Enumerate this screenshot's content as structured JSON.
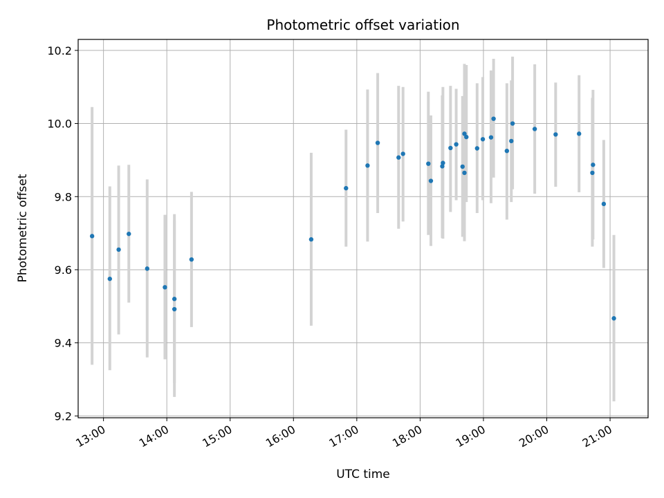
{
  "chart_data": {
    "type": "scatter",
    "title": "Photometric offset variation",
    "xlabel": "UTC time",
    "ylabel": "Photometric offset",
    "x_unit": "hour",
    "xlim": [
      12.6,
      21.6
    ],
    "ylim": [
      9.195,
      10.23
    ],
    "xticks": [
      {
        "value": 13,
        "label": "13:00"
      },
      {
        "value": 14,
        "label": "14:00"
      },
      {
        "value": 15,
        "label": "15:00"
      },
      {
        "value": 16,
        "label": "16:00"
      },
      {
        "value": 17,
        "label": "17:00"
      },
      {
        "value": 18,
        "label": "18:00"
      },
      {
        "value": 19,
        "label": "19:00"
      },
      {
        "value": 20,
        "label": "20:00"
      },
      {
        "value": 21,
        "label": "21:00"
      }
    ],
    "yticks": [
      {
        "value": 9.2,
        "label": "9.2"
      },
      {
        "value": 9.4,
        "label": "9.4"
      },
      {
        "value": 9.6,
        "label": "9.6"
      },
      {
        "value": 9.8,
        "label": "9.8"
      },
      {
        "value": 10.0,
        "label": "10.0"
      },
      {
        "value": 10.2,
        "label": "10.2"
      }
    ],
    "grid": true,
    "marker_color": "#1f77b4",
    "errorbar_color": "#d3d3d3",
    "points": [
      {
        "x": 12.82,
        "y": 9.692,
        "lo": 9.34,
        "hi": 10.045
      },
      {
        "x": 13.1,
        "y": 9.575,
        "lo": 9.325,
        "hi": 9.828
      },
      {
        "x": 13.24,
        "y": 9.655,
        "lo": 9.423,
        "hi": 9.885
      },
      {
        "x": 13.4,
        "y": 9.698,
        "lo": 9.51,
        "hi": 9.887
      },
      {
        "x": 13.69,
        "y": 9.603,
        "lo": 9.36,
        "hi": 9.847
      },
      {
        "x": 13.97,
        "y": 9.552,
        "lo": 9.355,
        "hi": 9.75
      },
      {
        "x": 14.12,
        "y": 9.52,
        "lo": 9.29,
        "hi": 9.752
      },
      {
        "x": 14.12,
        "y": 9.492,
        "lo": 9.252,
        "hi": 9.735
      },
      {
        "x": 14.39,
        "y": 9.628,
        "lo": 9.443,
        "hi": 9.813
      },
      {
        "x": 16.28,
        "y": 9.683,
        "lo": 9.447,
        "hi": 9.92
      },
      {
        "x": 16.83,
        "y": 9.823,
        "lo": 9.663,
        "hi": 9.983
      },
      {
        "x": 17.17,
        "y": 9.885,
        "lo": 9.677,
        "hi": 10.093
      },
      {
        "x": 17.33,
        "y": 9.947,
        "lo": 9.755,
        "hi": 10.138
      },
      {
        "x": 17.66,
        "y": 9.907,
        "lo": 9.712,
        "hi": 10.103
      },
      {
        "x": 17.73,
        "y": 9.917,
        "lo": 9.732,
        "hi": 10.1
      },
      {
        "x": 18.13,
        "y": 9.89,
        "lo": 9.695,
        "hi": 10.087
      },
      {
        "x": 18.17,
        "y": 9.843,
        "lo": 9.665,
        "hi": 10.022
      },
      {
        "x": 18.35,
        "y": 9.883,
        "lo": 9.687,
        "hi": 10.077
      },
      {
        "x": 18.36,
        "y": 9.892,
        "lo": 9.685,
        "hi": 10.1
      },
      {
        "x": 18.48,
        "y": 9.933,
        "lo": 9.758,
        "hi": 10.103
      },
      {
        "x": 18.57,
        "y": 9.943,
        "lo": 9.79,
        "hi": 10.095
      },
      {
        "x": 18.67,
        "y": 9.882,
        "lo": 9.69,
        "hi": 10.075
      },
      {
        "x": 18.7,
        "y": 9.972,
        "lo": 9.783,
        "hi": 10.163
      },
      {
        "x": 18.7,
        "y": 9.865,
        "lo": 9.678,
        "hi": 10.053
      },
      {
        "x": 18.73,
        "y": 9.963,
        "lo": 9.785,
        "hi": 10.16
      },
      {
        "x": 18.9,
        "y": 9.932,
        "lo": 9.755,
        "hi": 10.11
      },
      {
        "x": 18.99,
        "y": 9.957,
        "lo": 9.79,
        "hi": 10.127
      },
      {
        "x": 19.12,
        "y": 9.962,
        "lo": 9.782,
        "hi": 10.145
      },
      {
        "x": 19.16,
        "y": 10.013,
        "lo": 9.852,
        "hi": 10.177
      },
      {
        "x": 19.37,
        "y": 9.925,
        "lo": 9.737,
        "hi": 10.11
      },
      {
        "x": 19.44,
        "y": 9.952,
        "lo": 9.785,
        "hi": 10.118
      },
      {
        "x": 19.46,
        "y": 10.0,
        "lo": 9.82,
        "hi": 10.183
      },
      {
        "x": 19.81,
        "y": 9.985,
        "lo": 9.808,
        "hi": 10.162
      },
      {
        "x": 20.14,
        "y": 9.97,
        "lo": 9.827,
        "hi": 10.112
      },
      {
        "x": 20.51,
        "y": 9.972,
        "lo": 9.812,
        "hi": 10.132
      },
      {
        "x": 20.72,
        "y": 9.865,
        "lo": 9.663,
        "hi": 10.07
      },
      {
        "x": 20.73,
        "y": 9.887,
        "lo": 9.683,
        "hi": 10.092
      },
      {
        "x": 20.9,
        "y": 9.78,
        "lo": 9.605,
        "hi": 9.955
      },
      {
        "x": 21.06,
        "y": 9.467,
        "lo": 9.24,
        "hi": 9.695
      }
    ]
  }
}
